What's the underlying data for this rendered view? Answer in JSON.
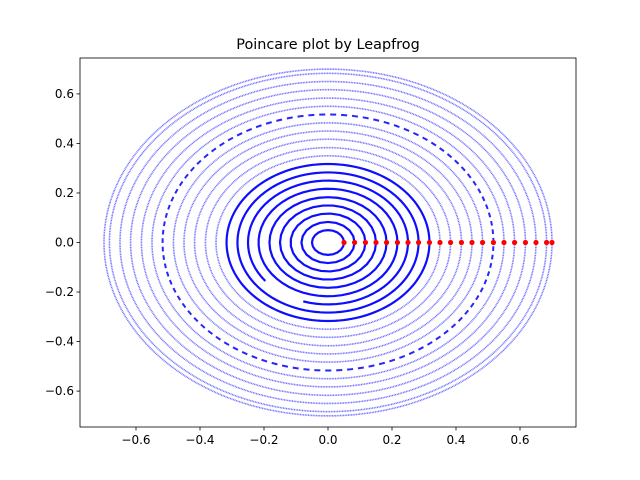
{
  "chart_data": {
    "type": "scatter",
    "title": "Poincare plot by Leapfrog",
    "xlabel": "",
    "ylabel": "",
    "xlim": [
      -0.775,
      0.775
    ],
    "ylim": [
      -0.745,
      0.745
    ],
    "x_ticks": [
      -0.6,
      -0.4,
      -0.2,
      0.0,
      0.2,
      0.4,
      0.6
    ],
    "x_tick_labels": [
      "−0.6",
      "−0.4",
      "−0.2",
      "0.0",
      "0.2",
      "0.4",
      "0.6"
    ],
    "y_ticks": [
      -0.6,
      -0.4,
      -0.2,
      0.0,
      0.2,
      0.4,
      0.6
    ],
    "y_tick_labels": [
      "−0.6",
      "−0.4",
      "−0.2",
      "0.0",
      "0.2",
      "0.4",
      "0.6"
    ],
    "grid": false,
    "series": [
      {
        "kind": "orbits",
        "color": "#0000ff",
        "marker": "point",
        "orbits": [
          {
            "q0": 0.05,
            "period_steps": 15
          },
          {
            "q0": 0.083,
            "period_steps": 20
          },
          {
            "q0": 0.117,
            "period_steps": 25
          },
          {
            "q0": 0.15,
            "period_steps": 30
          },
          {
            "q0": 0.183,
            "period_steps": 40
          },
          {
            "q0": 0.217,
            "period_steps": 55
          },
          {
            "q0": 0.25,
            "period_steps": 75,
            "fraction_drawn": 0.9
          },
          {
            "q0": 0.283,
            "period_steps": 110
          },
          {
            "q0": 0.317,
            "period_steps": 160
          },
          {
            "q0": 0.35,
            "period_steps": 230
          },
          {
            "q0": 0.383,
            "period_steps": 320
          },
          {
            "q0": 0.417,
            "period_steps": 420
          },
          {
            "q0": 0.45,
            "period_steps": 520
          },
          {
            "q0": 0.483,
            "period_steps": 620
          },
          {
            "q0": 0.517,
            "period_steps": 95,
            "gappy": true
          },
          {
            "q0": 0.55,
            "period_steps": 700
          },
          {
            "q0": 0.583,
            "period_steps": 800
          },
          {
            "q0": 0.617,
            "period_steps": 900
          },
          {
            "q0": 0.65,
            "period_steps": 1000
          },
          {
            "q0": 0.683,
            "period_steps": 1100
          },
          {
            "q0": 0.7,
            "period_steps": 1200
          }
        ]
      },
      {
        "kind": "initial_points",
        "color": "#ff0000",
        "marker": "circle",
        "x": [
          0.05,
          0.083,
          0.117,
          0.15,
          0.183,
          0.217,
          0.25,
          0.283,
          0.317,
          0.35,
          0.383,
          0.417,
          0.45,
          0.483,
          0.517,
          0.55,
          0.583,
          0.617,
          0.65,
          0.683,
          0.7
        ],
        "y": [
          0,
          0,
          0,
          0,
          0,
          0,
          0,
          0,
          0,
          0,
          0,
          0,
          0,
          0,
          0,
          0,
          0,
          0,
          0,
          0,
          0
        ]
      }
    ]
  }
}
